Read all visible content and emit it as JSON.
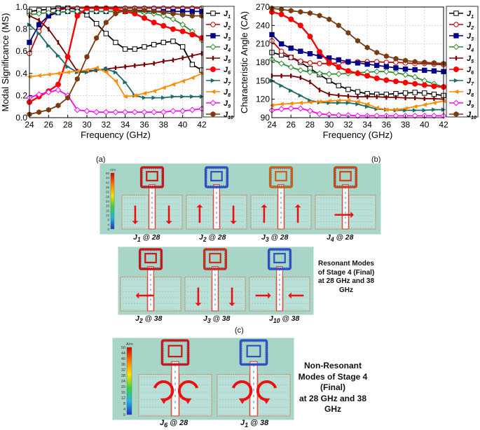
{
  "chart_data": [
    {
      "type": "line",
      "title": "",
      "xlabel": "Frequency (GHz)",
      "ylabel": "Modal Significance (MS)",
      "xlim": [
        24,
        42
      ],
      "ylim": [
        0,
        1
      ],
      "xticks": [
        24,
        26,
        28,
        30,
        32,
        34,
        36,
        38,
        40,
        42
      ],
      "yticks": [
        0.0,
        0.2,
        0.4,
        0.6,
        0.8,
        1.0
      ],
      "ytick_labels": [
        "0.0",
        "0.2",
        "0.4",
        "0.6",
        "0.8",
        "1.0"
      ],
      "grid": true,
      "legend": "right",
      "series": [
        {
          "name": "J1",
          "sub": "1",
          "color": "#000000",
          "marker": "square",
          "x": [
            24,
            25,
            26,
            27,
            28,
            29,
            30,
            31,
            32,
            33,
            34,
            35,
            36,
            37,
            38,
            39,
            40,
            41,
            42
          ],
          "y": [
            0.96,
            0.97,
            0.98,
            0.99,
            0.99,
            0.98,
            0.93,
            0.85,
            0.76,
            0.68,
            0.62,
            0.62,
            0.64,
            0.66,
            0.68,
            0.69,
            0.64,
            0.48,
            0.43
          ]
        },
        {
          "name": "J2",
          "sub": "2",
          "color": "#c00000",
          "marker": "circle-open",
          "x": [
            24,
            25,
            26,
            27,
            28,
            29,
            30,
            31,
            32,
            33,
            34,
            35,
            36,
            37,
            38,
            39,
            40,
            41,
            42
          ],
          "y": [
            0.58,
            0.78,
            0.92,
            0.97,
            0.99,
            0.99,
            0.99,
            0.99,
            0.99,
            0.99,
            0.99,
            0.99,
            0.99,
            0.99,
            0.99,
            0.99,
            0.99,
            0.99,
            0.99
          ]
        },
        {
          "name": "J3",
          "sub": "3",
          "color": "#00008b",
          "marker": "square",
          "x": [
            24,
            25,
            26,
            27,
            28,
            29,
            30,
            31,
            32,
            33,
            34,
            35,
            36,
            37,
            38,
            39,
            40,
            41,
            42
          ],
          "y": [
            0.68,
            0.84,
            0.92,
            0.95,
            0.96,
            0.96,
            0.96,
            0.96,
            0.96,
            0.96,
            0.96,
            0.96,
            0.96,
            0.96,
            0.96,
            0.96,
            0.96,
            0.96,
            0.96
          ]
        },
        {
          "name": "J4",
          "sub": "4",
          "color": "#2e8b2e",
          "marker": "diamond-open",
          "x": [
            24,
            25,
            26,
            27,
            28,
            29,
            30,
            31,
            32,
            33,
            34,
            35,
            36,
            37,
            38,
            39,
            40,
            41,
            42
          ],
          "y": [
            0.93,
            0.94,
            0.95,
            0.95,
            0.96,
            0.96,
            0.96,
            0.96,
            0.96,
            0.96,
            0.96,
            0.96,
            0.95,
            0.94,
            0.92,
            0.89,
            0.84,
            0.78,
            0.7
          ]
        },
        {
          "name": "J5",
          "sub": "5",
          "color": "#7a0000",
          "marker": "bar",
          "x": [
            24,
            25,
            26,
            27,
            28,
            29,
            30,
            31,
            32,
            33,
            34,
            35,
            36,
            37,
            38,
            39,
            40,
            41,
            42
          ],
          "y": [
            0.92,
            0.88,
            0.8,
            0.68,
            0.55,
            0.42,
            0.42,
            0.43,
            0.44,
            0.45,
            0.46,
            0.47,
            0.48,
            0.49,
            0.51,
            0.52,
            0.54,
            0.56,
            0.58
          ]
        },
        {
          "name": "J6",
          "sub": "6",
          "color": "#ff0000",
          "marker": "circle",
          "x": [
            24,
            25,
            26,
            27,
            28,
            29,
            30,
            31,
            32,
            33,
            34,
            35,
            36,
            37,
            38,
            39,
            40,
            41,
            42
          ],
          "y": [
            0.14,
            0.19,
            0.24,
            0.3,
            0.55,
            0.92,
            0.99,
            0.99,
            0.99,
            0.98,
            0.96,
            0.94,
            0.9,
            0.86,
            0.83,
            0.8,
            0.78,
            0.75,
            0.72
          ]
        },
        {
          "name": "J7",
          "sub": "7",
          "color": "#1f6b6b",
          "marker": "tri-right",
          "x": [
            24,
            25,
            26,
            27,
            28,
            29,
            30,
            31,
            32,
            33,
            34,
            35,
            36,
            37,
            38,
            39,
            40,
            41,
            42
          ],
          "y": [
            0.84,
            0.76,
            0.65,
            0.56,
            0.46,
            0.41,
            0.41,
            0.43,
            0.44,
            0.41,
            0.32,
            0.2,
            0.18,
            0.18,
            0.18,
            0.19,
            0.19,
            0.19,
            0.19
          ]
        },
        {
          "name": "J8",
          "sub": "8",
          "color": "#ff8c00",
          "marker": "tri-left",
          "x": [
            24,
            25,
            26,
            27,
            28,
            29,
            30,
            31,
            32,
            33,
            34,
            35,
            36,
            37,
            38,
            39,
            40,
            41,
            42
          ],
          "y": [
            0.37,
            0.38,
            0.39,
            0.4,
            0.41,
            0.42,
            0.43,
            0.45,
            0.41,
            0.33,
            0.19,
            0.2,
            0.22,
            0.24,
            0.27,
            0.3,
            0.33,
            0.36,
            0.4
          ]
        },
        {
          "name": "J9",
          "sub": "9",
          "color": "#ff00ff",
          "marker": "diamond-open",
          "x": [
            24,
            25,
            26,
            27,
            28,
            29,
            30,
            31,
            32,
            33,
            34,
            35,
            36,
            37,
            38,
            39,
            40,
            41,
            42
          ],
          "y": [
            0.18,
            0.21,
            0.23,
            0.25,
            0.2,
            0.07,
            0.06,
            0.05,
            0.05,
            0.05,
            0.05,
            0.05,
            0.05,
            0.05,
            0.05,
            0.06,
            0.06,
            0.07,
            0.08
          ]
        },
        {
          "name": "J10",
          "sub": "10",
          "color": "#7a3a10",
          "marker": "hexagon",
          "x": [
            24,
            25,
            26,
            27,
            28,
            29,
            30,
            31,
            32,
            33,
            34,
            35,
            36,
            37,
            38,
            39,
            40,
            41,
            42
          ],
          "y": [
            0.03,
            0.05,
            0.07,
            0.11,
            0.18,
            0.35,
            0.55,
            0.72,
            0.86,
            0.94,
            0.97,
            0.97,
            0.97,
            0.96,
            0.95,
            0.94,
            0.93,
            0.92,
            0.92
          ]
        }
      ]
    },
    {
      "type": "line",
      "title": "",
      "xlabel": "Frequency (GHz)",
      "ylabel": "Characteristic Angle (CA)",
      "xlim": [
        24,
        42
      ],
      "ylim": [
        90,
        270
      ],
      "xticks": [
        24,
        26,
        28,
        30,
        32,
        34,
        36,
        38,
        40,
        42
      ],
      "yticks": [
        90,
        120,
        150,
        180,
        210,
        240,
        270
      ],
      "ytick_labels": [
        "90",
        "120",
        "150",
        "180",
        "210",
        "240",
        "270"
      ],
      "grid": true,
      "legend": "right",
      "series": [
        {
          "name": "J1",
          "sub": "1",
          "color": "#000000",
          "marker": "square",
          "x": [
            24,
            25,
            26,
            27,
            28,
            29,
            30,
            31,
            32,
            33,
            34,
            35,
            36,
            37,
            38,
            39,
            40,
            41,
            42
          ],
          "y": [
            196,
            192,
            188,
            180,
            170,
            160,
            150,
            142,
            136,
            132,
            129,
            128,
            128,
            129,
            130,
            131,
            130,
            128,
            126
          ]
        },
        {
          "name": "J2",
          "sub": "2",
          "color": "#c00000",
          "marker": "circle-open",
          "x": [
            24,
            25,
            26,
            27,
            28,
            29,
            30,
            31,
            32,
            33,
            34,
            35,
            36,
            37,
            38,
            39,
            40,
            41,
            42
          ],
          "y": [
            215,
            198,
            188,
            182,
            179,
            178,
            178,
            179,
            180,
            181,
            181,
            181,
            180,
            180,
            179,
            178,
            178,
            177,
            176
          ]
        },
        {
          "name": "J3",
          "sub": "3",
          "color": "#00008b",
          "marker": "square",
          "x": [
            24,
            25,
            26,
            27,
            28,
            29,
            30,
            31,
            32,
            33,
            34,
            35,
            36,
            37,
            38,
            39,
            40,
            41,
            42
          ],
          "y": [
            225,
            210,
            203,
            198,
            194,
            190,
            187,
            184,
            181,
            179,
            177,
            175,
            173,
            171,
            169,
            168,
            167,
            166,
            165
          ]
        },
        {
          "name": "J4",
          "sub": "4",
          "color": "#2e8b2e",
          "marker": "diamond-open",
          "x": [
            24,
            25,
            26,
            27,
            28,
            29,
            30,
            31,
            32,
            33,
            34,
            35,
            36,
            37,
            38,
            39,
            40,
            41,
            42
          ],
          "y": [
            185,
            178,
            172,
            167,
            164,
            162,
            161,
            161,
            162,
            163,
            164,
            165,
            165,
            163,
            160,
            156,
            150,
            145,
            140
          ]
        },
        {
          "name": "J5",
          "sub": "5",
          "color": "#7a0000",
          "marker": "bar",
          "x": [
            24,
            25,
            26,
            27,
            28,
            29,
            30,
            31,
            32,
            33,
            34,
            35,
            36,
            37,
            38,
            39,
            40,
            41,
            42
          ],
          "y": [
            158,
            158,
            158,
            155,
            148,
            135,
            128,
            126,
            125,
            124,
            124,
            124,
            123,
            123,
            122,
            122,
            121,
            121,
            120
          ]
        },
        {
          "name": "J6",
          "sub": "6",
          "color": "#ff0000",
          "marker": "circle",
          "x": [
            24,
            25,
            26,
            27,
            28,
            29,
            30,
            31,
            32,
            33,
            34,
            35,
            36,
            37,
            38,
            39,
            40,
            41,
            42
          ],
          "y": [
            262,
            258,
            250,
            240,
            222,
            197,
            180,
            172,
            166,
            162,
            158,
            154,
            151,
            149,
            147,
            145,
            143,
            141,
            140
          ]
        },
        {
          "name": "J7",
          "sub": "7",
          "color": "#1f6b6b",
          "marker": "tri-right",
          "x": [
            24,
            25,
            26,
            27,
            28,
            29,
            30,
            31,
            32,
            33,
            34,
            35,
            36,
            37,
            38,
            39,
            40,
            41,
            42
          ],
          "y": [
            150,
            142,
            134,
            126,
            118,
            115,
            114,
            114,
            114,
            112,
            108,
            104,
            103,
            102,
            102,
            102,
            102,
            103,
            103
          ]
        },
        {
          "name": "J8",
          "sub": "8",
          "color": "#ff8c00",
          "marker": "tri-left",
          "x": [
            24,
            25,
            26,
            27,
            28,
            29,
            30,
            31,
            32,
            33,
            34,
            35,
            36,
            37,
            38,
            39,
            40,
            41,
            42
          ],
          "y": [
            110,
            112,
            113,
            114,
            115,
            116,
            117,
            118,
            118,
            116,
            112,
            106,
            103,
            103,
            105,
            108,
            111,
            114,
            117
          ]
        },
        {
          "name": "J9",
          "sub": "9",
          "color": "#ff00ff",
          "marker": "diamond-open",
          "x": [
            24,
            25,
            26,
            27,
            28,
            29,
            30,
            31,
            32,
            33,
            34,
            35,
            36,
            37,
            38,
            39,
            40,
            41,
            42
          ],
          "y": [
            102,
            104,
            105,
            105,
            101,
            96,
            95,
            94,
            94,
            93,
            93,
            93,
            93,
            93,
            93,
            93,
            93,
            93,
            93
          ]
        },
        {
          "name": "J10",
          "sub": "10",
          "color": "#7a3a10",
          "marker": "hexagon",
          "x": [
            24,
            25,
            26,
            27,
            28,
            29,
            30,
            31,
            32,
            33,
            34,
            35,
            36,
            37,
            38,
            39,
            40,
            41,
            42
          ],
          "y": [
            268,
            266,
            264,
            262,
            260,
            256,
            250,
            240,
            228,
            215,
            204,
            196,
            190,
            186,
            183,
            181,
            180,
            179,
            178
          ]
        }
      ]
    }
  ],
  "labels": {
    "a": "(a)",
    "b": "(b)",
    "c": "(c)"
  },
  "colorbar": {
    "unit": "A/m",
    "ticks_small": [
      "50",
      "44",
      "40",
      "36",
      "32",
      "28",
      "24",
      "20",
      "16",
      "12",
      "8",
      "4",
      "0"
    ],
    "ticks_large": [
      "50",
      "44",
      "40",
      "36",
      "32",
      "28",
      "24",
      "20",
      "16",
      "12",
      "8",
      "4",
      "0"
    ]
  },
  "panels_row1": [
    {
      "cap_j": "J",
      "cap_sub": "1",
      "cap_freq": " @ 28"
    },
    {
      "cap_j": "J",
      "cap_sub": "2",
      "cap_freq": " @ 28"
    },
    {
      "cap_j": "J",
      "cap_sub": "3",
      "cap_freq": " @ 28"
    },
    {
      "cap_j": "J",
      "cap_sub": "4",
      "cap_freq": " @ 28"
    }
  ],
  "panels_row2": [
    {
      "cap_j": "J",
      "cap_sub": "2",
      "cap_freq": " @ 38"
    },
    {
      "cap_j": "J",
      "cap_sub": "3",
      "cap_freq": " @ 38"
    },
    {
      "cap_j": "J",
      "cap_sub": "10",
      "cap_freq": " @ 38"
    }
  ],
  "panels_row3": [
    {
      "cap_j": "J",
      "cap_sub": "6",
      "cap_freq": " @ 28"
    },
    {
      "cap_j": "J",
      "cap_sub": "1",
      "cap_freq": " @ 38"
    }
  ],
  "note_resonant": [
    "Resonant Modes",
    "of Stage 4 (Final)",
    "at 28 GHz and 38",
    "GHz"
  ],
  "note_nonresonant": [
    "Non-Resonant",
    "Modes of Stage 4",
    "(Final)",
    "at 28 GHz and 38",
    "GHz"
  ]
}
